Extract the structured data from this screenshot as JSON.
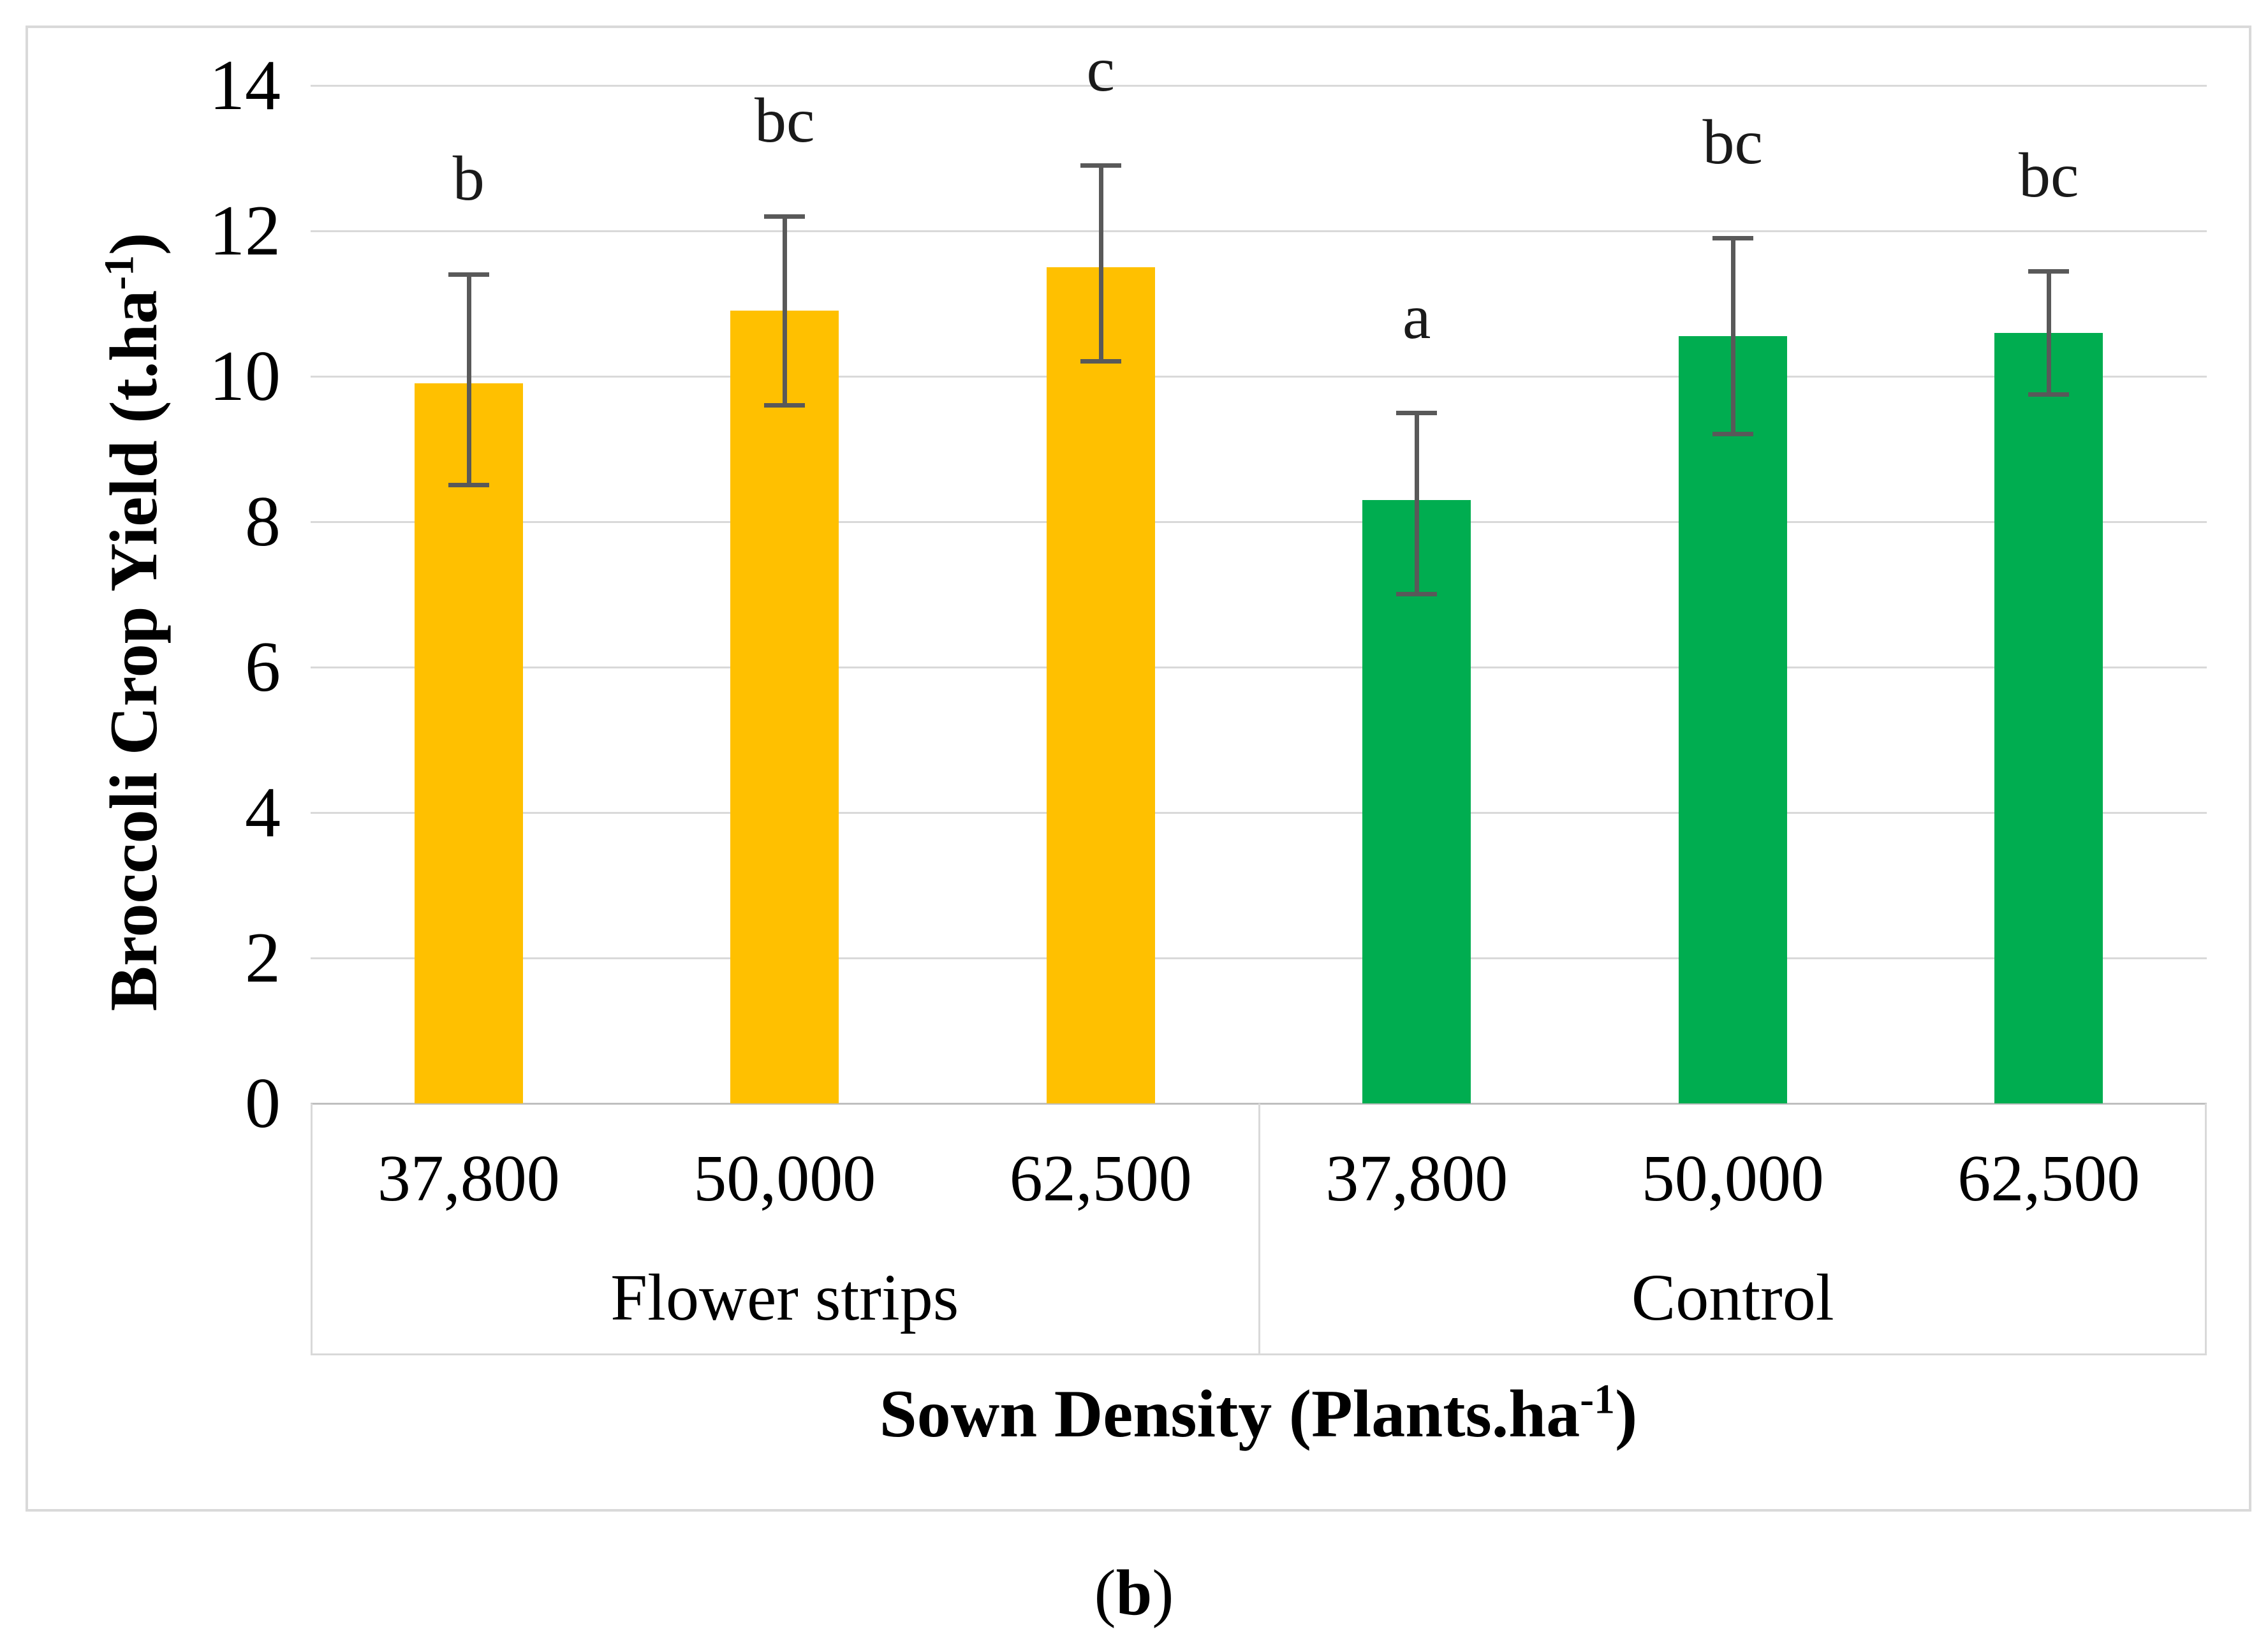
{
  "figure": {
    "caption": {
      "open": "(",
      "letter": "b",
      "close": ")"
    }
  },
  "chart_data": {
    "type": "bar",
    "title": "",
    "ylabel": {
      "prefix": "Broccoli Crop Yield (t.ha",
      "sup": "-1",
      "suffix": ")",
      "full": "Broccoli Crop Yield (t.ha⁻¹)"
    },
    "xlabel": {
      "prefix": "Sown Density (Plants.ha",
      "sup": "-1",
      "suffix": ")",
      "full": "Sown Density (Plants.ha⁻¹)"
    },
    "ylim": [
      0,
      14
    ],
    "yticks": [
      0,
      2,
      4,
      6,
      8,
      10,
      12,
      14
    ],
    "ytick_labels": [
      "0",
      "2",
      "4",
      "6",
      "8",
      "10",
      "12",
      "14"
    ],
    "grid": true,
    "legend": "none",
    "categories": [
      "37,800",
      "50,000",
      "62,500",
      "37,800",
      "50,000",
      "62,500"
    ],
    "groups": [
      {
        "label": "Flower strips",
        "color": "#FFC000",
        "bars": [
          {
            "category": "37,800",
            "value": 9.9,
            "err_low": 8.5,
            "err_high": 11.4,
            "letter": "b"
          },
          {
            "category": "50,000",
            "value": 10.9,
            "err_low": 9.6,
            "err_high": 12.2,
            "letter": "bc"
          },
          {
            "category": "62,500",
            "value": 11.5,
            "err_low": 10.2,
            "err_high": 12.9,
            "letter": "c"
          }
        ]
      },
      {
        "label": "Control",
        "color": "#00AD50",
        "bars": [
          {
            "category": "37,800",
            "value": 8.3,
            "err_low": 7.0,
            "err_high": 9.5,
            "letter": "a"
          },
          {
            "category": "50,000",
            "value": 10.55,
            "err_low": 9.2,
            "err_high": 11.9,
            "letter": "bc"
          },
          {
            "category": "62,500",
            "value": 10.6,
            "err_low": 9.75,
            "err_high": 11.45,
            "letter": "bc"
          }
        ]
      }
    ],
    "colors": {
      "bar_yellow": "#FFC000",
      "bar_green": "#00AD50",
      "gridline": "#d9d9d9",
      "axis_line": "#bfbfbf",
      "error_bar": "#595959",
      "text": "#000000"
    }
  }
}
